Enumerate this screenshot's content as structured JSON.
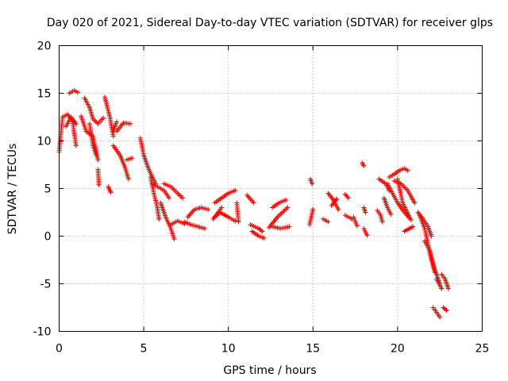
{
  "chart_data": {
    "type": "scatter",
    "title": "Day 020 of 2021, Sidereal Day-to-day VTEC variation (SDTVAR) for receiver glps",
    "xlabel": "GPS time / hours",
    "ylabel": "SDTVAR / TECUs",
    "xlim": [
      0,
      25
    ],
    "ylim": [
      -10,
      20
    ],
    "xticks": [
      "0",
      "5",
      "10",
      "15",
      "20",
      "25"
    ],
    "yticks": [
      "-10",
      "-5",
      "0",
      "5",
      "10",
      "15",
      "20"
    ],
    "grid": true,
    "marker": "+",
    "color": "#ff0000",
    "series": [
      {
        "name": "glps",
        "tracks": [
          [
            [
              0.0,
              8.8
            ],
            [
              0.2,
              12.5
            ],
            [
              0.5,
              12.8
            ],
            [
              0.8,
              12.0
            ],
            [
              1.0,
              9.5
            ]
          ],
          [
            [
              0.6,
              15.0
            ],
            [
              0.9,
              15.3
            ],
            [
              1.1,
              15.1
            ]
          ],
          [
            [
              0.4,
              11.5
            ],
            [
              0.7,
              12.5
            ],
            [
              1.0,
              11.8
            ]
          ],
          [
            [
              1.3,
              12.6
            ],
            [
              1.6,
              11.0
            ],
            [
              2.0,
              10.5
            ],
            [
              2.3,
              8.0
            ]
          ],
          [
            [
              1.5,
              14.5
            ],
            [
              1.8,
              13.5
            ],
            [
              2.0,
              12.3
            ],
            [
              2.3,
              11.8
            ],
            [
              2.6,
              12.4
            ]
          ],
          [
            [
              1.8,
              11.8
            ],
            [
              2.0,
              9.5
            ],
            [
              2.2,
              8.5
            ]
          ],
          [
            [
              2.3,
              7.0
            ],
            [
              2.35,
              5.4
            ]
          ],
          [
            [
              2.7,
              14.6
            ],
            [
              3.0,
              12.5
            ],
            [
              3.2,
              10.5
            ]
          ],
          [
            [
              2.9,
              5.2
            ],
            [
              3.05,
              4.6
            ]
          ],
          [
            [
              3.2,
              9.5
            ],
            [
              3.6,
              8.5
            ],
            [
              3.9,
              7.2
            ],
            [
              4.1,
              6.0
            ]
          ],
          [
            [
              3.4,
              11.0
            ],
            [
              3.8,
              11.9
            ],
            [
              4.2,
              11.8
            ]
          ],
          [
            [
              3.2,
              11.0
            ],
            [
              3.4,
              12.0
            ]
          ],
          [
            [
              4.0,
              8.0
            ],
            [
              4.3,
              8.2
            ]
          ],
          [
            [
              4.8,
              10.3
            ],
            [
              5.0,
              8.5
            ],
            [
              5.3,
              7.0
            ],
            [
              5.7,
              5.5
            ]
          ],
          [
            [
              5.4,
              6.2
            ],
            [
              5.6,
              4.5
            ],
            [
              5.8,
              3.0
            ],
            [
              5.9,
              1.8
            ]
          ],
          [
            [
              5.5,
              5.5
            ],
            [
              5.8,
              5.2
            ],
            [
              6.2,
              4.8
            ],
            [
              6.5,
              4.0
            ]
          ],
          [
            [
              6.2,
              5.5
            ],
            [
              6.6,
              5.2
            ],
            [
              7.0,
              4.5
            ],
            [
              7.3,
              4.0
            ]
          ],
          [
            [
              6.0,
              3.5
            ],
            [
              6.3,
              2.0
            ],
            [
              6.6,
              0.8
            ],
            [
              6.8,
              -0.3
            ]
          ],
          [
            [
              6.6,
              1.2
            ],
            [
              7.0,
              1.6
            ],
            [
              7.4,
              1.3
            ]
          ],
          [
            [
              7.4,
              1.5
            ],
            [
              7.8,
              1.2
            ],
            [
              8.2,
              1.0
            ],
            [
              8.6,
              0.8
            ]
          ],
          [
            [
              7.6,
              2.0
            ],
            [
              8.0,
              2.8
            ],
            [
              8.4,
              3.0
            ],
            [
              8.8,
              2.8
            ]
          ],
          [
            [
              9.1,
              1.8
            ],
            [
              9.4,
              2.5
            ],
            [
              9.6,
              3.0
            ]
          ],
          [
            [
              9.2,
              2.0
            ],
            [
              9.5,
              2.5
            ],
            [
              10.0,
              2.0
            ],
            [
              10.4,
              1.6
            ]
          ],
          [
            [
              9.2,
              3.5
            ],
            [
              9.6,
              4.0
            ],
            [
              10.0,
              4.5
            ],
            [
              10.4,
              4.8
            ]
          ],
          [
            [
              10.5,
              3.5
            ],
            [
              10.6,
              1.5
            ]
          ],
          [
            [
              11.1,
              4.3
            ],
            [
              11.5,
              3.5
            ]
          ],
          [
            [
              11.3,
              1.2
            ],
            [
              11.8,
              0.8
            ],
            [
              12.0,
              0.5
            ]
          ],
          [
            [
              11.4,
              0.5
            ],
            [
              11.8,
              0.0
            ],
            [
              12.1,
              -0.2
            ]
          ],
          [
            [
              12.4,
              0.9
            ],
            [
              12.9,
              2.0
            ],
            [
              13.2,
              2.5
            ],
            [
              13.5,
              3.0
            ]
          ],
          [
            [
              12.6,
              3.0
            ],
            [
              13.0,
              3.5
            ],
            [
              13.4,
              3.8
            ]
          ],
          [
            [
              12.6,
              1.0
            ],
            [
              13.1,
              0.8
            ],
            [
              13.6,
              1.0
            ]
          ],
          [
            [
              14.8,
              1.2
            ],
            [
              15.0,
              2.8
            ]
          ],
          [
            [
              14.85,
              6.0
            ],
            [
              14.95,
              5.5
            ]
          ],
          [
            [
              15.6,
              1.8
            ],
            [
              15.9,
              1.5
            ]
          ],
          [
            [
              15.9,
              4.5
            ],
            [
              16.2,
              3.8
            ],
            [
              16.5,
              2.8
            ]
          ],
          [
            [
              16.1,
              3.2
            ],
            [
              16.4,
              3.9
            ]
          ],
          [
            [
              16.9,
              4.4
            ],
            [
              17.1,
              4.0
            ]
          ],
          [
            [
              16.9,
              2.2
            ],
            [
              17.3,
              1.8
            ]
          ],
          [
            [
              17.4,
              2.0
            ],
            [
              17.6,
              1.1
            ]
          ],
          [
            [
              17.9,
              7.7
            ],
            [
              18.0,
              7.4
            ]
          ],
          [
            [
              18.0,
              3.0
            ],
            [
              18.1,
              2.5
            ]
          ],
          [
            [
              18.0,
              0.8
            ],
            [
              18.2,
              0.1
            ]
          ],
          [
            [
              18.8,
              2.7
            ],
            [
              19.0,
              2.2
            ],
            [
              19.1,
              1.5
            ]
          ],
          [
            [
              18.9,
              6.0
            ],
            [
              19.3,
              5.5
            ],
            [
              19.5,
              4.8
            ]
          ],
          [
            [
              19.2,
              4.0
            ],
            [
              19.4,
              3.0
            ],
            [
              19.6,
              2.3
            ]
          ],
          [
            [
              19.4,
              5.5
            ],
            [
              19.7,
              4.5
            ],
            [
              20.0,
              3.5
            ],
            [
              20.4,
              2.5
            ],
            [
              20.8,
              1.7
            ]
          ],
          [
            [
              19.5,
              6.2
            ],
            [
              19.8,
              6.5
            ],
            [
              20.1,
              6.9
            ],
            [
              20.4,
              7.1
            ],
            [
              20.6,
              6.9
            ]
          ],
          [
            [
              19.8,
              5.8
            ],
            [
              20.2,
              5.5
            ],
            [
              20.6,
              4.8
            ],
            [
              21.0,
              3.5
            ]
          ],
          [
            [
              20.0,
              6.0
            ],
            [
              20.3,
              3.5
            ],
            [
              20.7,
              2.0
            ]
          ],
          [
            [
              20.4,
              0.5
            ],
            [
              20.9,
              1.0
            ]
          ],
          [
            [
              21.2,
              2.5
            ],
            [
              21.5,
              1.8
            ],
            [
              21.8,
              1.0
            ],
            [
              22.0,
              0.0
            ]
          ],
          [
            [
              21.3,
              2.2
            ],
            [
              21.6,
              0.8
            ],
            [
              21.8,
              -0.8
            ],
            [
              22.0,
              -2.5
            ],
            [
              22.2,
              -3.8
            ]
          ],
          [
            [
              21.6,
              -0.5
            ],
            [
              21.9,
              -1.5
            ],
            [
              22.2,
              -3.5
            ],
            [
              22.5,
              -5.0
            ]
          ],
          [
            [
              22.3,
              -4.5
            ],
            [
              22.6,
              -5.5
            ]
          ],
          [
            [
              22.6,
              -4.0
            ],
            [
              22.8,
              -4.5
            ],
            [
              23.0,
              -5.5
            ]
          ],
          [
            [
              22.1,
              -7.5
            ],
            [
              22.3,
              -8.0
            ],
            [
              22.5,
              -8.5
            ]
          ],
          [
            [
              22.7,
              -7.5
            ],
            [
              22.9,
              -7.8
            ]
          ]
        ]
      }
    ]
  }
}
